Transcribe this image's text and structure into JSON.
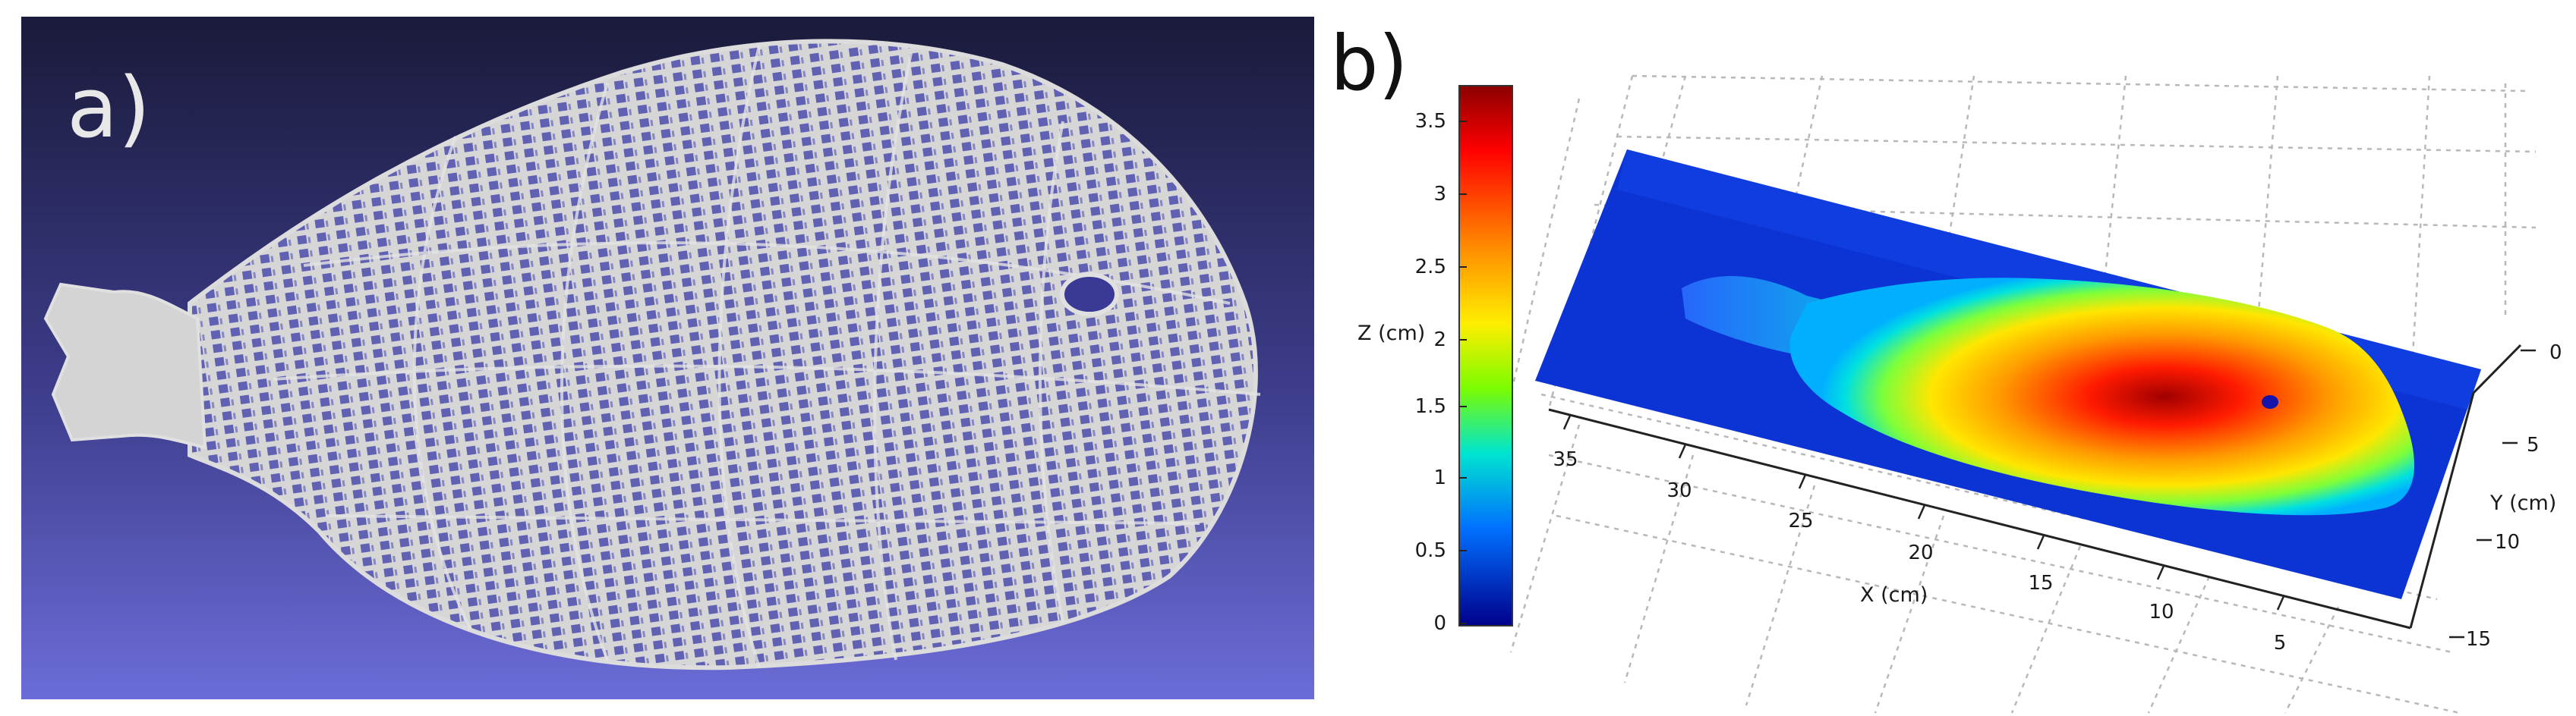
{
  "panel_a": {
    "label": "a)"
  },
  "panel_b": {
    "label": "b)",
    "colorbar": {
      "ticks": [
        "3.5",
        "3",
        "2.5",
        "2",
        "1.5",
        "1",
        "0.5",
        "0"
      ]
    },
    "axes": {
      "x_label": "X (cm)",
      "y_label": "Y (cm)",
      "z_label": "Z (cm)",
      "x_ticks": [
        "35",
        "30",
        "25",
        "20",
        "15",
        "10",
        "5"
      ],
      "y_ticks": [
        "0",
        "5",
        "10",
        "15"
      ]
    }
  },
  "colors": {
    "panel_a_bg_top": "#1c1c3e",
    "panel_a_bg_bottom": "#6a6ad6",
    "mesh": "#d8d8d8",
    "surface_base": "#0b2fd0",
    "peak": "#c00000"
  }
}
